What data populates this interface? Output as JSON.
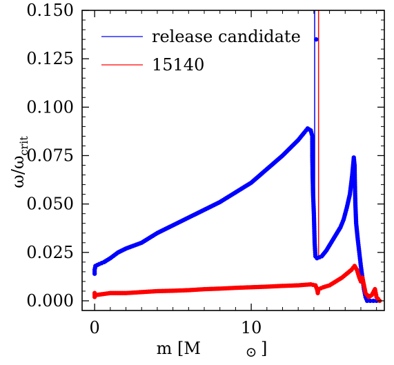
{
  "chart_data": {
    "type": "scatter",
    "xlabel": "m [M",
    "xlabel_symbol": "⊙",
    "xlabel_close": "]",
    "ylabel": "ω/ω",
    "ylabel_sub": "crit",
    "xlim": [
      -0.8,
      18.5
    ],
    "ylim": [
      -0.005,
      0.15
    ],
    "xticks": [
      0,
      10
    ],
    "xtick_labels": [
      "0",
      "10"
    ],
    "yticks": [
      0.0,
      0.025,
      0.05,
      0.075,
      0.1,
      0.125,
      0.15
    ],
    "ytick_labels": [
      "0.000",
      "0.025",
      "0.050",
      "0.075",
      "0.100",
      "0.125",
      "0.150"
    ],
    "legend_position": "top-left",
    "series": [
      {
        "name": "release candidate",
        "color": "#0000ff",
        "points": [
          [
            0.0,
            0.014
          ],
          [
            0.0,
            0.016
          ],
          [
            0.05,
            0.018
          ],
          [
            0.3,
            0.019
          ],
          [
            0.6,
            0.02
          ],
          [
            1.0,
            0.022
          ],
          [
            1.5,
            0.025
          ],
          [
            2.0,
            0.027
          ],
          [
            3.0,
            0.03
          ],
          [
            4.0,
            0.035
          ],
          [
            5.0,
            0.039
          ],
          [
            6.0,
            0.043
          ],
          [
            7.0,
            0.047
          ],
          [
            8.0,
            0.051
          ],
          [
            9.0,
            0.056
          ],
          [
            10.0,
            0.061
          ],
          [
            11.0,
            0.068
          ],
          [
            12.0,
            0.075
          ],
          [
            12.5,
            0.079
          ],
          [
            13.0,
            0.083
          ],
          [
            13.4,
            0.087
          ],
          [
            13.6,
            0.089
          ],
          [
            13.8,
            0.088
          ],
          [
            13.9,
            0.085
          ],
          [
            13.9,
            0.075
          ],
          [
            13.92,
            0.065
          ],
          [
            13.95,
            0.055
          ],
          [
            14.0,
            0.045
          ],
          [
            14.05,
            0.03
          ],
          [
            14.1,
            0.023
          ],
          [
            14.15,
            0.135
          ],
          [
            14.2,
            0.022
          ],
          [
            14.5,
            0.023
          ],
          [
            14.8,
            0.026
          ],
          [
            15.1,
            0.03
          ],
          [
            15.4,
            0.034
          ],
          [
            15.7,
            0.038
          ],
          [
            15.9,
            0.042
          ],
          [
            16.1,
            0.048
          ],
          [
            16.3,
            0.055
          ],
          [
            16.45,
            0.065
          ],
          [
            16.55,
            0.074
          ],
          [
            16.6,
            0.07
          ],
          [
            16.62,
            0.06
          ],
          [
            16.65,
            0.05
          ],
          [
            16.7,
            0.04
          ],
          [
            16.8,
            0.032
          ],
          [
            16.9,
            0.025
          ],
          [
            17.0,
            0.018
          ],
          [
            17.1,
            0.012
          ],
          [
            17.2,
            0.006
          ],
          [
            17.3,
            0.002
          ],
          [
            17.4,
            0.0
          ],
          [
            17.6,
            0.0
          ],
          [
            17.8,
            0.0
          ],
          [
            18.0,
            0.0
          ]
        ]
      },
      {
        "name": "15140",
        "color": "#ff0000",
        "points": [
          [
            0.0,
            0.002
          ],
          [
            0.0,
            0.004
          ],
          [
            0.1,
            0.003
          ],
          [
            1.0,
            0.004
          ],
          [
            2.0,
            0.004
          ],
          [
            3.0,
            0.0045
          ],
          [
            4.0,
            0.005
          ],
          [
            5.0,
            0.0052
          ],
          [
            6.0,
            0.0055
          ],
          [
            7.0,
            0.006
          ],
          [
            8.0,
            0.0063
          ],
          [
            9.0,
            0.0067
          ],
          [
            10.0,
            0.007
          ],
          [
            11.0,
            0.0073
          ],
          [
            12.0,
            0.0077
          ],
          [
            13.0,
            0.008
          ],
          [
            13.8,
            0.0085
          ],
          [
            14.1,
            0.008
          ],
          [
            14.2,
            0.006
          ],
          [
            14.25,
            0.004
          ],
          [
            14.3,
            0.006
          ],
          [
            14.6,
            0.007
          ],
          [
            15.0,
            0.008
          ],
          [
            15.4,
            0.01
          ],
          [
            15.8,
            0.012
          ],
          [
            16.1,
            0.014
          ],
          [
            16.4,
            0.016
          ],
          [
            16.6,
            0.018
          ],
          [
            16.75,
            0.016
          ],
          [
            16.9,
            0.012
          ],
          [
            17.0,
            0.01
          ],
          [
            17.1,
            0.012
          ],
          [
            17.2,
            0.008
          ],
          [
            17.3,
            0.004
          ],
          [
            17.5,
            0.002
          ],
          [
            17.7,
            0.003
          ],
          [
            17.9,
            0.006
          ],
          [
            18.0,
            0.002
          ],
          [
            18.2,
            0.0
          ]
        ]
      }
    ],
    "vertical_lines": [
      {
        "series": "release candidate",
        "x": 14.05,
        "color": "#0000ff"
      },
      {
        "series": "15140",
        "x": 14.3,
        "color": "#ff0000"
      }
    ]
  }
}
